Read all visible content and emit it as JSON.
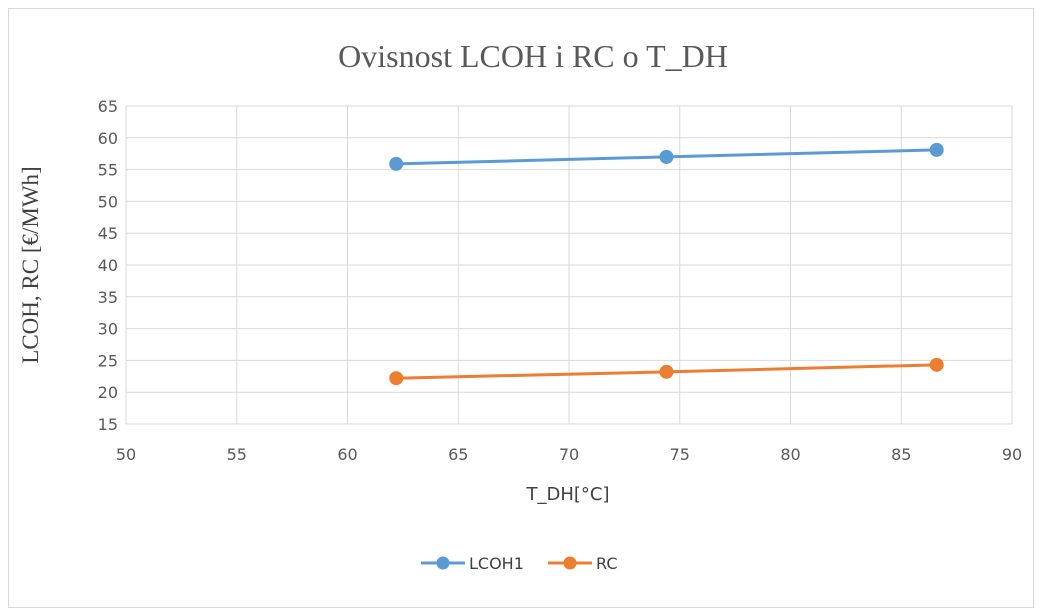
{
  "chart_data": {
    "type": "scatter",
    "title": "Ovisnost LCOH i RC o T_DH",
    "xlabel": "T_DH[°C]",
    "ylabel": "LCOH, RC [€/MWh]",
    "xlim": [
      50,
      90
    ],
    "ylim": [
      15,
      65
    ],
    "x_ticks": [
      "50",
      "55",
      "60",
      "65",
      "70",
      "75",
      "80",
      "85",
      "90"
    ],
    "y_ticks": [
      "15",
      "20",
      "25",
      "30",
      "35",
      "40",
      "45",
      "50",
      "55",
      "60",
      "65"
    ],
    "grid": true,
    "legend_position": "bottom",
    "series": [
      {
        "name": "LCOH1",
        "color": "#5b9bd5",
        "points": [
          [
            62.2,
            55.9
          ],
          [
            74.4,
            57.0
          ],
          [
            86.6,
            58.1
          ]
        ]
      },
      {
        "name": "RC",
        "color": "#ed7d31",
        "points": [
          [
            62.2,
            22.2
          ],
          [
            74.4,
            23.2
          ],
          [
            86.6,
            24.3
          ]
        ]
      }
    ]
  }
}
